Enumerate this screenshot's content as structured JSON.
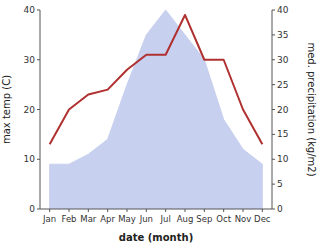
{
  "chart_data": {
    "type": "line",
    "xlabel": "date (month)",
    "ylabel": "max temp (C)",
    "y2label": "med. precipitation (kg/m2)",
    "categories": [
      "Jan",
      "Feb",
      "Mar",
      "Apr",
      "May",
      "Jun",
      "Jul",
      "Aug",
      "Sep",
      "Oct",
      "Nov",
      "Dec"
    ],
    "series": [
      {
        "type": "line",
        "color": "#b03030",
        "values": [
          13,
          20,
          23,
          24,
          28,
          31,
          31,
          39,
          30,
          30,
          20,
          13
        ]
      },
      {
        "type": "area",
        "axis": "y2",
        "color": "#c8d0f0",
        "values": [
          9,
          9,
          11,
          14,
          25,
          35,
          40,
          35,
          30,
          18,
          12,
          9
        ]
      }
    ],
    "ylim": [
      0,
      40
    ],
    "yticks": [
      0,
      10,
      20,
      30,
      40
    ],
    "y2lim": [
      0,
      40
    ],
    "y2ticks": [
      0,
      5,
      10,
      15,
      20,
      25,
      30,
      35,
      40
    ],
    "grid": false
  }
}
